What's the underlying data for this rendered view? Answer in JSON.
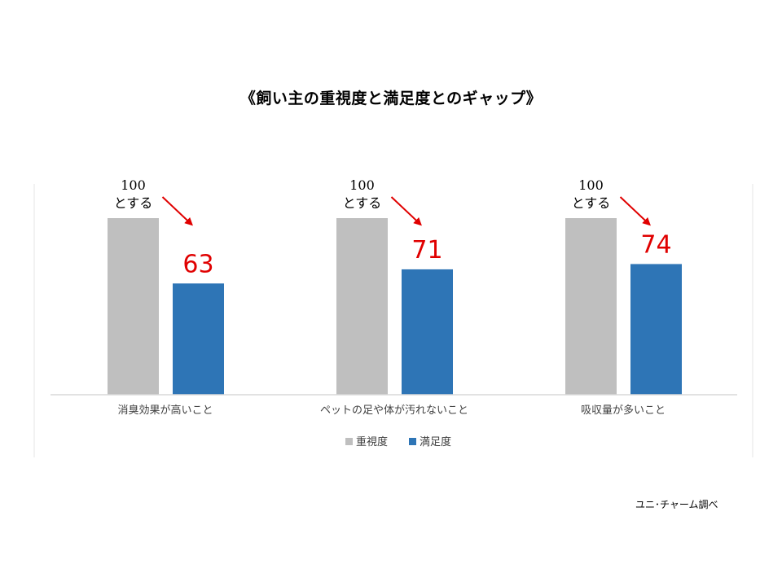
{
  "title": "《飼い主の重視度と満足度とのギャップ》",
  "source": "ユニ･チャーム調べ",
  "colors": {
    "importance": "#bfbfbf",
    "satisfaction": "#2e75b6",
    "annotation": "#e00000",
    "axis": "#d9d9d9"
  },
  "chart_data": {
    "type": "bar",
    "title": "《飼い主の重視度と満足度とのギャップ》",
    "categories": [
      "消臭効果が高いこと",
      "ペットの足や体が汚れないこと",
      "吸収量が多いこと"
    ],
    "series": [
      {
        "name": "重視度",
        "values": [
          100,
          100,
          100
        ]
      },
      {
        "name": "満足度",
        "values": [
          63,
          71,
          74
        ]
      }
    ],
    "ylim": [
      0,
      100
    ],
    "grid": false,
    "legend": "bottom",
    "annotations": [
      {
        "category_index": 0,
        "ref_value": "100",
        "ref_text": "とする",
        "value_text": "63"
      },
      {
        "category_index": 1,
        "ref_value": "100",
        "ref_text": "とする",
        "value_text": "71"
      },
      {
        "category_index": 2,
        "ref_value": "100",
        "ref_text": "とする",
        "value_text": "74"
      }
    ]
  }
}
